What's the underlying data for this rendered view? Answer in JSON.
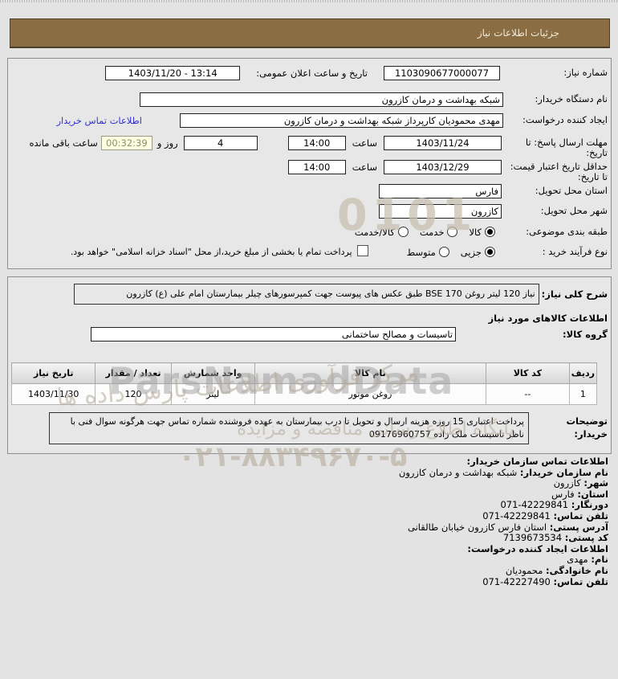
{
  "page": {
    "title": "جزئیات اطلاعات نیاز"
  },
  "colors": {
    "header_bg": "#8a6d42",
    "link": "#3333cc",
    "countdown_bg": "#ffffe1",
    "page_bg": "#e3e3e3"
  },
  "details": {
    "need_number": {
      "label": "شماره نیاز:",
      "value": "1103090677000077"
    },
    "announce": {
      "label": "تاریخ و ساعت اعلان عمومی:",
      "value": "1403/11/20 - 13:14"
    },
    "buyer_org": {
      "label": "نام دستگاه خریدار:",
      "value": "شبکه بهداشت و درمان کازرون"
    },
    "creator": {
      "label": "ایجاد کننده درخواست:",
      "value": "مهدی محمودیان کارپرداز شبکه بهداشت و درمان کازرون",
      "link_label": "اطلاعات تماس خریدار"
    },
    "deadline": {
      "label": "مهلت ارسال پاسخ: تا تاریخ:",
      "date": "1403/11/24",
      "hour_label": "ساعت",
      "hour": "14:00",
      "days": "4",
      "days_label": "روز و",
      "countdown": "00:32:39",
      "countdown_label": "ساعت باقی مانده"
    },
    "validity": {
      "label": "حداقل تاریخ اعتبار قیمت: تا تاریخ:",
      "date": "1403/12/29",
      "hour_label": "ساعت",
      "hour": "14:00"
    },
    "province": {
      "label": "استان محل تحویل:",
      "value": "فارس"
    },
    "city": {
      "label": "شهر محل تحویل:",
      "value": "کازرون"
    },
    "subject_class": {
      "label": "طبقه بندی موضوعی:",
      "options": [
        {
          "label": "کالا",
          "selected": true
        },
        {
          "label": "خدمت",
          "selected": false
        },
        {
          "label": "کالا/خدمت",
          "selected": false
        }
      ]
    },
    "process_type": {
      "label": "نوع فرآیند خرید :",
      "options": [
        {
          "label": "جزیی",
          "selected": true
        },
        {
          "label": "متوسط",
          "selected": false
        }
      ],
      "checkbox_checked": false,
      "checkbox_label": "پرداخت تمام یا بخشی از مبلغ خرید،از محل \"اسناد خزانه اسلامی\" خواهد بود."
    }
  },
  "need": {
    "desc_label": "شرح کلی نیاز:",
    "desc_value": "نیاز 120 لیتر روغن BSE 170 طبق عکس های پیوست جهت کمپرسورهای چیلر بیمارستان امام علی (ع) کازرون",
    "goods_heading": "اطلاعات کالاهای مورد نیاز",
    "group_label": "گروه کالا:",
    "group_value": "تاسیسات و مصالح ساختمانی",
    "table": {
      "headers": [
        "ردیف",
        "کد کالا",
        "نام کالا",
        "واحد شمارش",
        "تعداد / مقدار",
        "تاریخ نیاز"
      ],
      "rows": [
        [
          "1",
          "--",
          "روغن موتور",
          "لیتر",
          "120",
          "1403/11/30"
        ]
      ]
    },
    "notes_label": "توضیحات خریدار:",
    "notes_value": "پرداخت اعتباری 15 روزه هزینه ارسال و تحویل تا درب بیمارستان به عهده فروشنده شماره تماس جهت هرگونه سوال فنی با ناظر تاسیسات ملک زاده 09176960757"
  },
  "contact": {
    "heading": "اطلاعات تماس سازمان خریدار:",
    "lines": [
      {
        "label": "نام سازمان خریدار:",
        "value": "شبکه بهداشت و درمان کازرون"
      },
      {
        "label": "شهر:",
        "value": "کازرون"
      },
      {
        "label": "استان:",
        "value": "فارس"
      },
      {
        "label": "دورنگار:",
        "value": "42229841-071"
      },
      {
        "label": "تلفن تماس:",
        "value": "42229841-071"
      },
      {
        "label": "آدرس پستی:",
        "value": "استان فارس کازرون خیابان طالقانی"
      },
      {
        "label": "کد پستی:",
        "value": "7139673534"
      }
    ],
    "creator_heading": "اطلاعات ایجاد کننده درخواست:",
    "creator_lines": [
      {
        "label": "نام:",
        "value": "مهدی"
      },
      {
        "label": "نام خانوادگی:",
        "value": "محمودیان"
      },
      {
        "label": "تلفن تماس:",
        "value": "42227490-071"
      }
    ]
  },
  "watermarks": {
    "brand": "ParsNamadData",
    "digits": "0101",
    "line1": "مرکز فرآوری اطلاعات پارس داده ها",
    "line2": "پایگاه اطلاع رسانی مناقصه و مزایده",
    "phone": "۰۲۱-۸۸۳۴۹۶۷۰-۵"
  }
}
